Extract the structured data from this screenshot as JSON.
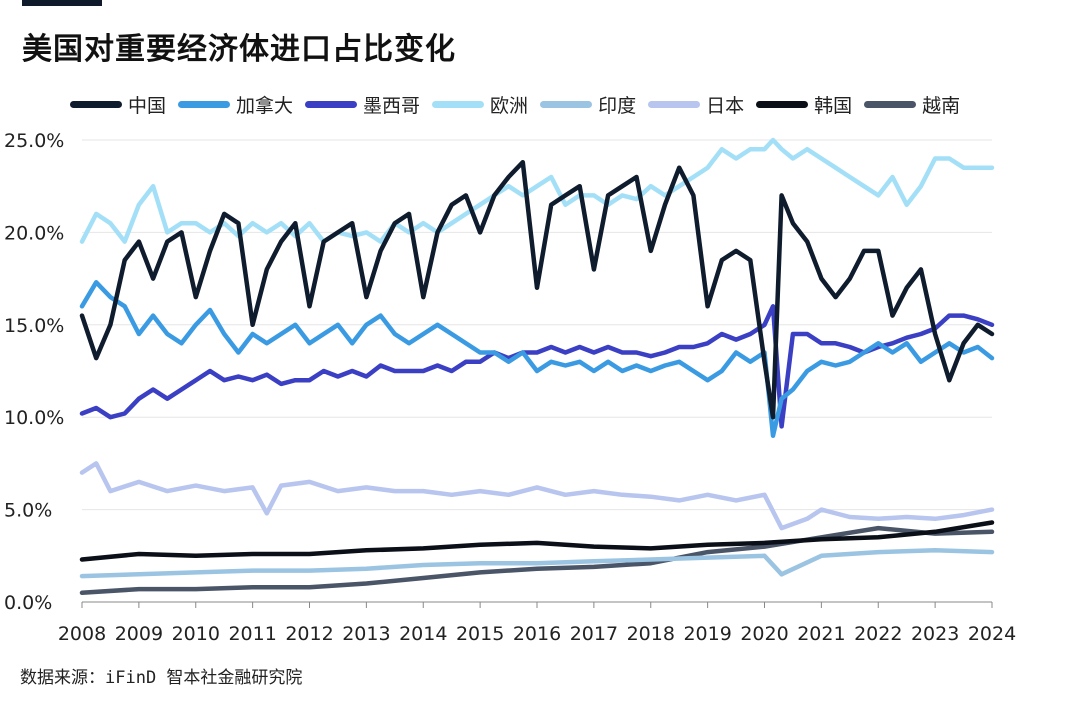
{
  "header": {
    "title": "美国对重要经济体进口占比变化"
  },
  "footer": {
    "source": "数据来源：iFinD 智本社金融研究院"
  },
  "chart_data": {
    "type": "line",
    "title": "美国对重要经济体进口占比变化",
    "xlabel": "",
    "ylabel": "",
    "xlim": [
      2008,
      2024
    ],
    "ylim": [
      0,
      25
    ],
    "x_ticks": [
      "2008",
      "2009",
      "2010",
      "2011",
      "2012",
      "2013",
      "2014",
      "2015",
      "2016",
      "2017",
      "2018",
      "2019",
      "2020",
      "2021",
      "2022",
      "2023",
      "2024"
    ],
    "y_ticks": [
      "0.0%",
      "5.0%",
      "10.0%",
      "15.0%",
      "20.0%",
      "25.0%"
    ],
    "grid": "horizontal",
    "legend_position": "top",
    "series": [
      {
        "name": "中国",
        "color": "#0f1c2e",
        "x": [
          2008,
          2008.25,
          2008.5,
          2008.75,
          2009,
          2009.25,
          2009.5,
          2009.75,
          2010,
          2010.25,
          2010.5,
          2010.75,
          2011,
          2011.25,
          2011.5,
          2011.75,
          2012,
          2012.25,
          2012.5,
          2012.75,
          2013,
          2013.25,
          2013.5,
          2013.75,
          2014,
          2014.25,
          2014.5,
          2014.75,
          2015,
          2015.25,
          2015.5,
          2015.75,
          2016,
          2016.25,
          2016.5,
          2016.75,
          2017,
          2017.25,
          2017.5,
          2017.75,
          2018,
          2018.25,
          2018.5,
          2018.75,
          2019,
          2019.25,
          2019.5,
          2019.75,
          2020,
          2020.15,
          2020.3,
          2020.5,
          2020.75,
          2021,
          2021.25,
          2021.5,
          2021.75,
          2022,
          2022.25,
          2022.5,
          2022.75,
          2023,
          2023.25,
          2023.5,
          2023.75,
          2024
        ],
        "y": [
          15.5,
          13.2,
          15.0,
          18.5,
          19.5,
          17.5,
          19.5,
          20.0,
          16.5,
          19.0,
          21.0,
          20.5,
          15.0,
          18.0,
          19.5,
          20.5,
          16.0,
          19.5,
          20.0,
          20.5,
          16.5,
          19.0,
          20.5,
          21.0,
          16.5,
          20.0,
          21.5,
          22.0,
          20.0,
          22.0,
          23.0,
          23.8,
          17.0,
          21.5,
          22.0,
          22.5,
          18.0,
          22.0,
          22.5,
          23.0,
          19.0,
          21.5,
          23.5,
          22.0,
          16.0,
          18.5,
          19.0,
          18.5,
          13.0,
          10.0,
          22.0,
          20.5,
          19.5,
          17.5,
          16.5,
          17.5,
          19.0,
          19.0,
          15.5,
          17.0,
          18.0,
          14.5,
          12.0,
          14.0,
          15.0,
          14.5
        ]
      },
      {
        "name": "加拿大",
        "color": "#3a9be3",
        "x": [
          2008,
          2008.25,
          2008.5,
          2008.75,
          2009,
          2009.25,
          2009.5,
          2009.75,
          2010,
          2010.25,
          2010.5,
          2010.75,
          2011,
          2011.25,
          2011.5,
          2011.75,
          2012,
          2012.25,
          2012.5,
          2012.75,
          2013,
          2013.25,
          2013.5,
          2013.75,
          2014,
          2014.25,
          2014.5,
          2014.75,
          2015,
          2015.25,
          2015.5,
          2015.75,
          2016,
          2016.25,
          2016.5,
          2016.75,
          2017,
          2017.25,
          2017.5,
          2017.75,
          2018,
          2018.25,
          2018.5,
          2018.75,
          2019,
          2019.25,
          2019.5,
          2019.75,
          2020,
          2020.15,
          2020.3,
          2020.5,
          2020.75,
          2021,
          2021.25,
          2021.5,
          2021.75,
          2022,
          2022.25,
          2022.5,
          2022.75,
          2023,
          2023.25,
          2023.5,
          2023.75,
          2024
        ],
        "y": [
          16.0,
          17.3,
          16.5,
          16.0,
          14.5,
          15.5,
          14.5,
          14.0,
          15.0,
          15.8,
          14.5,
          13.5,
          14.5,
          14.0,
          14.5,
          15.0,
          14.0,
          14.5,
          15.0,
          14.0,
          15.0,
          15.5,
          14.5,
          14.0,
          14.5,
          15.0,
          14.5,
          14.0,
          13.5,
          13.5,
          13.0,
          13.5,
          12.5,
          13.0,
          12.8,
          13.0,
          12.5,
          13.0,
          12.5,
          12.8,
          12.5,
          12.8,
          13.0,
          12.5,
          12.0,
          12.5,
          13.5,
          13.0,
          13.5,
          9.0,
          11.0,
          11.5,
          12.5,
          13.0,
          12.8,
          13.0,
          13.5,
          14.0,
          13.5,
          14.0,
          13.0,
          13.5,
          14.0,
          13.5,
          13.8,
          13.2
        ]
      },
      {
        "name": "墨西哥",
        "color": "#3a3fc4",
        "x": [
          2008,
          2008.25,
          2008.5,
          2008.75,
          2009,
          2009.25,
          2009.5,
          2009.75,
          2010,
          2010.25,
          2010.5,
          2010.75,
          2011,
          2011.25,
          2011.5,
          2011.75,
          2012,
          2012.25,
          2012.5,
          2012.75,
          2013,
          2013.25,
          2013.5,
          2013.75,
          2014,
          2014.25,
          2014.5,
          2014.75,
          2015,
          2015.25,
          2015.5,
          2015.75,
          2016,
          2016.25,
          2016.5,
          2016.75,
          2017,
          2017.25,
          2017.5,
          2017.75,
          2018,
          2018.25,
          2018.5,
          2018.75,
          2019,
          2019.25,
          2019.5,
          2019.75,
          2020,
          2020.15,
          2020.3,
          2020.5,
          2020.75,
          2021,
          2021.25,
          2021.5,
          2021.75,
          2022,
          2022.25,
          2022.5,
          2022.75,
          2023,
          2023.25,
          2023.5,
          2023.75,
          2024
        ],
        "y": [
          10.2,
          10.5,
          10.0,
          10.2,
          11.0,
          11.5,
          11.0,
          11.5,
          12.0,
          12.5,
          12.0,
          12.2,
          12.0,
          12.3,
          11.8,
          12.0,
          12.0,
          12.5,
          12.2,
          12.5,
          12.2,
          12.8,
          12.5,
          12.5,
          12.5,
          12.8,
          12.5,
          13.0,
          13.0,
          13.5,
          13.2,
          13.5,
          13.5,
          13.8,
          13.5,
          13.8,
          13.5,
          13.8,
          13.5,
          13.5,
          13.3,
          13.5,
          13.8,
          13.8,
          14.0,
          14.5,
          14.2,
          14.5,
          15.0,
          16.0,
          9.5,
          14.5,
          14.5,
          14.0,
          14.0,
          13.8,
          13.5,
          13.8,
          14.0,
          14.3,
          14.5,
          14.8,
          15.5,
          15.5,
          15.3,
          15.0
        ]
      },
      {
        "name": "欧洲",
        "color": "#a3e0f7",
        "x": [
          2008,
          2008.25,
          2008.5,
          2008.75,
          2009,
          2009.25,
          2009.5,
          2009.75,
          2010,
          2010.25,
          2010.5,
          2010.75,
          2011,
          2011.25,
          2011.5,
          2011.75,
          2012,
          2012.25,
          2012.5,
          2012.75,
          2013,
          2013.25,
          2013.5,
          2013.75,
          2014,
          2014.25,
          2014.5,
          2014.75,
          2015,
          2015.25,
          2015.5,
          2015.75,
          2016,
          2016.25,
          2016.5,
          2016.75,
          2017,
          2017.25,
          2017.5,
          2017.75,
          2018,
          2018.25,
          2018.5,
          2018.75,
          2019,
          2019.25,
          2019.5,
          2019.75,
          2020,
          2020.15,
          2020.3,
          2020.5,
          2020.75,
          2021,
          2021.25,
          2021.5,
          2021.75,
          2022,
          2022.25,
          2022.5,
          2022.75,
          2023,
          2023.25,
          2023.5,
          2023.75,
          2024
        ],
        "y": [
          19.5,
          21.0,
          20.5,
          19.5,
          21.5,
          22.5,
          20.0,
          20.5,
          20.5,
          20.0,
          20.5,
          19.8,
          20.5,
          20.0,
          20.5,
          19.8,
          20.5,
          19.5,
          20.0,
          19.8,
          20.0,
          19.5,
          20.5,
          20.0,
          20.5,
          20.0,
          20.5,
          21.0,
          21.5,
          22.0,
          22.5,
          22.0,
          22.5,
          23.0,
          21.5,
          22.0,
          22.0,
          21.5,
          22.0,
          21.8,
          22.5,
          22.0,
          22.5,
          23.0,
          23.5,
          24.5,
          24.0,
          24.5,
          24.5,
          25.0,
          24.5,
          24.0,
          24.5,
          24.0,
          23.5,
          23.0,
          22.5,
          22.0,
          23.0,
          21.5,
          22.5,
          24.0,
          24.0,
          23.5,
          23.5,
          23.5
        ]
      },
      {
        "name": "印度",
        "color": "#9bc4e2",
        "x": [
          2008,
          2009,
          2010,
          2011,
          2012,
          2013,
          2014,
          2015,
          2016,
          2017,
          2018,
          2019,
          2020,
          2020.3,
          2021,
          2022,
          2023,
          2024
        ],
        "y": [
          1.4,
          1.5,
          1.6,
          1.7,
          1.7,
          1.8,
          2.0,
          2.1,
          2.1,
          2.2,
          2.3,
          2.4,
          2.5,
          1.5,
          2.5,
          2.7,
          2.8,
          2.7
        ]
      },
      {
        "name": "日本",
        "color": "#b7c5ef",
        "x": [
          2008,
          2008.25,
          2008.5,
          2009,
          2009.5,
          2010,
          2010.5,
          2011,
          2011.25,
          2011.5,
          2012,
          2012.5,
          2013,
          2013.5,
          2014,
          2014.5,
          2015,
          2015.5,
          2016,
          2016.5,
          2017,
          2017.5,
          2018,
          2018.5,
          2019,
          2019.5,
          2020,
          2020.3,
          2020.75,
          2021,
          2021.5,
          2022,
          2022.5,
          2023,
          2023.5,
          2024
        ],
        "y": [
          7.0,
          7.5,
          6.0,
          6.5,
          6.0,
          6.3,
          6.0,
          6.2,
          4.8,
          6.3,
          6.5,
          6.0,
          6.2,
          6.0,
          6.0,
          5.8,
          6.0,
          5.8,
          6.2,
          5.8,
          6.0,
          5.8,
          5.7,
          5.5,
          5.8,
          5.5,
          5.8,
          4.0,
          4.5,
          5.0,
          4.6,
          4.5,
          4.6,
          4.5,
          4.7,
          5.0
        ]
      },
      {
        "name": "韩国",
        "color": "#0a0f18",
        "x": [
          2008,
          2009,
          2010,
          2011,
          2012,
          2013,
          2014,
          2015,
          2016,
          2017,
          2018,
          2019,
          2020,
          2021,
          2022,
          2023,
          2024
        ],
        "y": [
          2.3,
          2.6,
          2.5,
          2.6,
          2.6,
          2.8,
          2.9,
          3.1,
          3.2,
          3.0,
          2.9,
          3.1,
          3.2,
          3.4,
          3.5,
          3.8,
          4.3
        ]
      },
      {
        "name": "越南",
        "color": "#4a5568",
        "x": [
          2008,
          2009,
          2010,
          2011,
          2012,
          2013,
          2014,
          2015,
          2016,
          2017,
          2018,
          2019,
          2020,
          2021,
          2022,
          2023,
          2024
        ],
        "y": [
          0.5,
          0.7,
          0.7,
          0.8,
          0.8,
          1.0,
          1.3,
          1.6,
          1.8,
          1.9,
          2.1,
          2.7,
          3.0,
          3.5,
          4.0,
          3.7,
          3.8
        ]
      }
    ]
  }
}
